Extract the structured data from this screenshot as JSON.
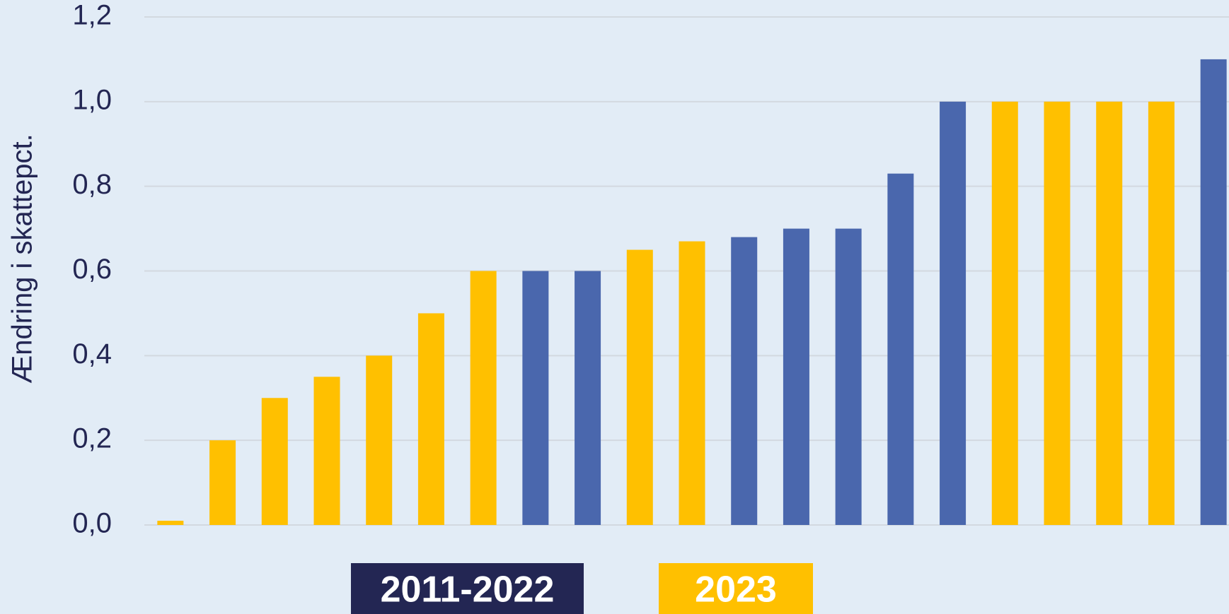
{
  "chart_data": {
    "type": "bar",
    "y_label": "Ændring i skattepct.",
    "categories": [
      null,
      null,
      null,
      null,
      null,
      null,
      null,
      null,
      null,
      null,
      null,
      null,
      null,
      null,
      null,
      null,
      null,
      null,
      null,
      null,
      null
    ],
    "series": [
      {
        "name": "2011-2022",
        "color": "#4a67ad",
        "legend_color": "#232653",
        "values": [
          null,
          null,
          null,
          null,
          null,
          null,
          null,
          0.6,
          0.6,
          null,
          null,
          0.68,
          0.7,
          0.7,
          0.83,
          1.0,
          null,
          null,
          null,
          null,
          1.1
        ]
      },
      {
        "name": "2023",
        "color": "#ffc000",
        "legend_color": "#ffc000",
        "values": [
          0.01,
          0.2,
          0.3,
          0.35,
          0.4,
          0.5,
          0.6,
          null,
          null,
          0.65,
          0.67,
          null,
          null,
          null,
          null,
          null,
          1.0,
          1.0,
          1.0,
          1.0,
          null
        ]
      }
    ],
    "ylim": [
      0,
      1.2
    ],
    "yticks": [
      {
        "value": 0,
        "label": "0,0"
      },
      {
        "value": 0.2,
        "label": "0,2"
      },
      {
        "value": 0.4,
        "label": "0,4"
      },
      {
        "value": 0.6,
        "label": "0,6"
      },
      {
        "value": 0.8,
        "label": "0,8"
      },
      {
        "value": 1.0,
        "label": "1,0"
      },
      {
        "value": 1.2,
        "label": "1,2"
      }
    ],
    "grid": true
  }
}
